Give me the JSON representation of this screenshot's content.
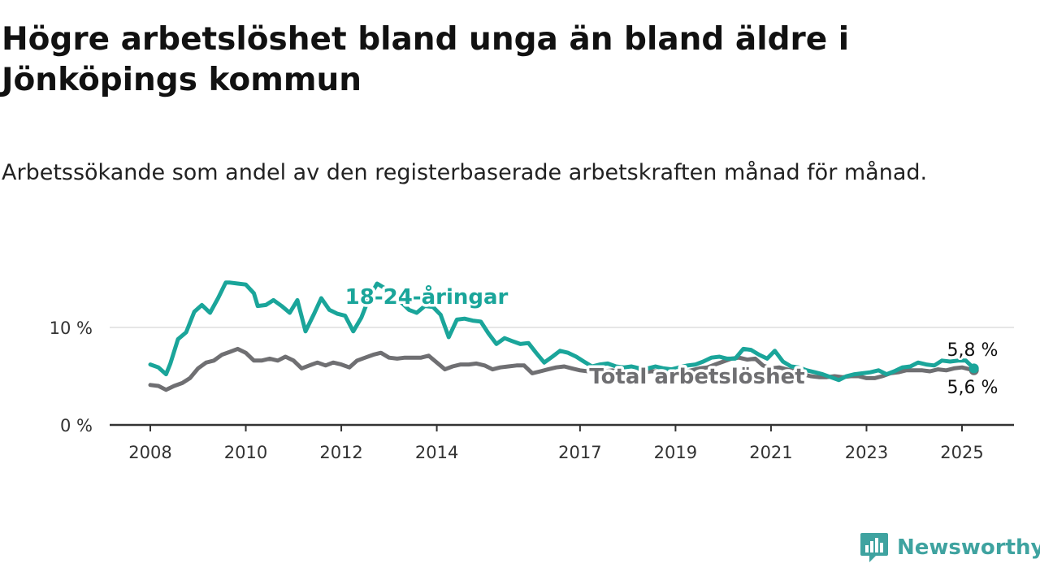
{
  "title": "Högre arbetslöshet bland unga än bland äldre i Jönköpings kommun",
  "subtitle": "Arbetssökande som andel av den registerbaserade arbetskraften månad för månad.",
  "brand": {
    "name": "Newsworthy"
  },
  "colors": {
    "youth": "#1aa59a",
    "total": "#6f6f72",
    "grid": "#dddddd",
    "axis": "#333333",
    "brand": "#3fa3a0"
  },
  "chart_data": {
    "type": "line",
    "x_unit": "year",
    "ylim": [
      0,
      16
    ],
    "grid": "horizontal",
    "y_ticks": [
      {
        "value": 0,
        "label": "0 %"
      },
      {
        "value": 10,
        "label": "10 %"
      }
    ],
    "x_ticks": [
      {
        "value": 2008,
        "label": "2008"
      },
      {
        "value": 2010,
        "label": "2010"
      },
      {
        "value": 2012,
        "label": "2012"
      },
      {
        "value": 2014,
        "label": "2014"
      },
      {
        "value": 2017,
        "label": "2017"
      },
      {
        "value": 2019,
        "label": "2019"
      },
      {
        "value": 2021,
        "label": "2021"
      },
      {
        "value": 2023,
        "label": "2023"
      },
      {
        "value": 2025,
        "label": "2025"
      }
    ],
    "series": [
      {
        "key": "youth",
        "name": "18-24-åringar",
        "end_label": "5,8 %",
        "x": [
          2008.0,
          2008.17,
          2008.33,
          2008.42,
          2008.58,
          2008.75,
          2008.92,
          2009.08,
          2009.25,
          2009.42,
          2009.58,
          2009.67,
          2009.83,
          2010.0,
          2010.17,
          2010.25,
          2010.42,
          2010.58,
          2010.75,
          2010.92,
          2011.08,
          2011.25,
          2011.42,
          2011.58,
          2011.75,
          2011.92,
          2012.08,
          2012.25,
          2012.42,
          2012.58,
          2012.75,
          2012.92,
          2013.08,
          2013.25,
          2013.42,
          2013.58,
          2013.75,
          2013.92,
          2014.08,
          2014.25,
          2014.42,
          2014.58,
          2014.75,
          2014.92,
          2015.08,
          2015.25,
          2015.42,
          2015.58,
          2015.75,
          2015.92,
          2016.08,
          2016.25,
          2016.42,
          2016.58,
          2016.75,
          2016.92,
          2017.08,
          2017.25,
          2017.42,
          2017.58,
          2017.75,
          2017.92,
          2018.08,
          2018.25,
          2018.42,
          2018.58,
          2018.75,
          2018.92,
          2019.08,
          2019.25,
          2019.42,
          2019.58,
          2019.75,
          2019.92,
          2020.08,
          2020.25,
          2020.42,
          2020.58,
          2020.75,
          2020.92,
          2021.08,
          2021.25,
          2021.42,
          2021.58,
          2021.75,
          2021.92,
          2022.08,
          2022.25,
          2022.42,
          2022.58,
          2022.75,
          2022.92,
          2023.08,
          2023.25,
          2023.42,
          2023.58,
          2023.75,
          2023.92,
          2024.08,
          2024.25,
          2024.42,
          2024.58,
          2024.75,
          2024.92,
          2025.08,
          2025.25
        ],
        "values": [
          6.2,
          5.9,
          5.2,
          6.3,
          8.8,
          9.5,
          11.6,
          12.3,
          11.5,
          13.0,
          14.6,
          14.6,
          14.5,
          14.4,
          13.5,
          12.2,
          12.3,
          12.8,
          12.2,
          11.5,
          12.8,
          9.6,
          11.3,
          13.0,
          11.8,
          11.4,
          11.2,
          9.6,
          11.0,
          13.0,
          14.5,
          14.0,
          13.2,
          12.6,
          11.8,
          11.5,
          12.2,
          12.1,
          11.3,
          9.0,
          10.8,
          10.9,
          10.7,
          10.6,
          9.4,
          8.3,
          8.9,
          8.6,
          8.3,
          8.4,
          7.4,
          6.4,
          7.0,
          7.6,
          7.4,
          7.0,
          6.5,
          6.0,
          6.2,
          6.3,
          6.0,
          5.9,
          6.0,
          5.8,
          5.8,
          6.0,
          5.8,
          5.7,
          5.9,
          6.1,
          6.2,
          6.5,
          6.9,
          7.0,
          6.8,
          6.8,
          7.8,
          7.7,
          7.2,
          6.8,
          7.6,
          6.5,
          6.0,
          5.9,
          5.6,
          5.4,
          5.2,
          4.9,
          4.6,
          5.0,
          5.2,
          5.3,
          5.4,
          5.6,
          5.2,
          5.5,
          5.9,
          6.0,
          6.4,
          6.2,
          6.1,
          6.6,
          6.5,
          6.6,
          6.6,
          5.8
        ]
      },
      {
        "key": "total",
        "name": "Total arbetslöshet",
        "end_label": "5,6 %",
        "x": [
          2008.0,
          2008.17,
          2008.33,
          2008.5,
          2008.67,
          2008.83,
          2009.0,
          2009.17,
          2009.33,
          2009.5,
          2009.67,
          2009.83,
          2010.0,
          2010.17,
          2010.33,
          2010.5,
          2010.67,
          2010.83,
          2011.0,
          2011.17,
          2011.33,
          2011.5,
          2011.67,
          2011.83,
          2012.0,
          2012.17,
          2012.33,
          2012.5,
          2012.67,
          2012.83,
          2013.0,
          2013.17,
          2013.33,
          2013.5,
          2013.67,
          2013.83,
          2014.0,
          2014.17,
          2014.33,
          2014.5,
          2014.67,
          2014.83,
          2015.0,
          2015.17,
          2015.33,
          2015.5,
          2015.67,
          2015.83,
          2016.0,
          2016.17,
          2016.33,
          2016.5,
          2016.67,
          2016.83,
          2017.0,
          2017.17,
          2017.33,
          2017.5,
          2017.67,
          2017.83,
          2018.0,
          2018.17,
          2018.33,
          2018.5,
          2018.67,
          2018.83,
          2019.0,
          2019.17,
          2019.33,
          2019.5,
          2019.67,
          2019.83,
          2020.0,
          2020.17,
          2020.33,
          2020.5,
          2020.67,
          2020.83,
          2021.0,
          2021.17,
          2021.33,
          2021.5,
          2021.67,
          2021.83,
          2022.0,
          2022.17,
          2022.33,
          2022.5,
          2022.67,
          2022.83,
          2023.0,
          2023.17,
          2023.33,
          2023.5,
          2023.67,
          2023.83,
          2024.0,
          2024.17,
          2024.33,
          2024.5,
          2024.67,
          2024.83,
          2025.0,
          2025.25
        ],
        "values": [
          4.1,
          4.0,
          3.6,
          4.0,
          4.3,
          4.8,
          5.8,
          6.4,
          6.6,
          7.2,
          7.5,
          7.8,
          7.4,
          6.6,
          6.6,
          6.8,
          6.6,
          7.0,
          6.6,
          5.8,
          6.1,
          6.4,
          6.1,
          6.4,
          6.2,
          5.9,
          6.6,
          6.9,
          7.2,
          7.4,
          6.9,
          6.8,
          6.9,
          6.9,
          6.9,
          7.1,
          6.4,
          5.7,
          6.0,
          6.2,
          6.2,
          6.3,
          6.1,
          5.7,
          5.9,
          6.0,
          6.1,
          6.1,
          5.3,
          5.5,
          5.7,
          5.9,
          6.0,
          5.8,
          5.6,
          5.5,
          5.4,
          5.5,
          5.6,
          5.5,
          5.4,
          5.5,
          5.4,
          5.5,
          5.5,
          5.4,
          5.3,
          5.4,
          5.6,
          5.8,
          5.9,
          6.2,
          6.5,
          6.8,
          6.9,
          6.7,
          6.8,
          6.1,
          5.8,
          5.9,
          5.7,
          5.5,
          5.2,
          5.0,
          4.9,
          4.9,
          5.0,
          4.9,
          5.0,
          5.0,
          4.8,
          4.8,
          5.0,
          5.3,
          5.4,
          5.6,
          5.6,
          5.6,
          5.5,
          5.7,
          5.6,
          5.8,
          5.9,
          5.6
        ]
      }
    ]
  }
}
